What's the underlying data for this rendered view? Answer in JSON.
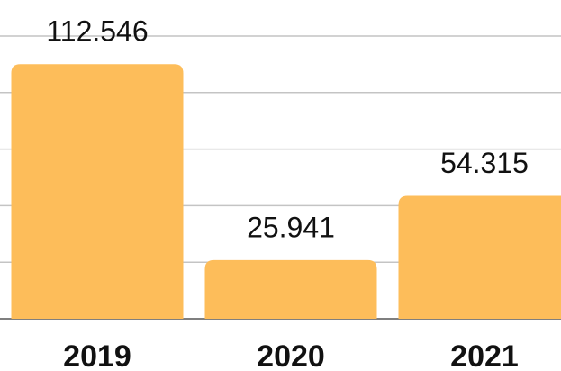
{
  "chart_data": {
    "type": "bar",
    "categories": [
      "2019",
      "2020",
      "2021"
    ],
    "values": [
      112546,
      25941,
      54315
    ],
    "value_labels": [
      "112.546",
      "25.941",
      "54.315"
    ],
    "color": "#fdbd5a",
    "ylim": [
      0,
      125000
    ],
    "yticks": [
      0,
      25000,
      50000,
      75000,
      100000,
      125000
    ],
    "grid": true
  }
}
